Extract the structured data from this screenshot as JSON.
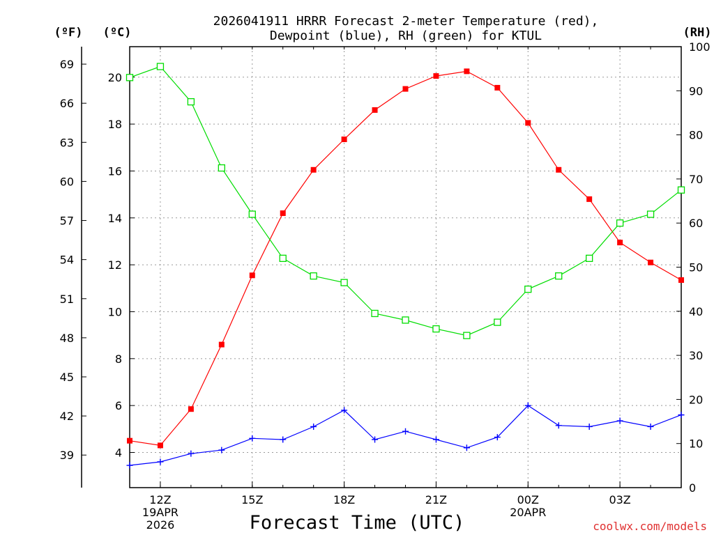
{
  "chart_data": {
    "type": "line",
    "title_line1": "2026041911 HRRR Forecast 2-meter Temperature (red),",
    "title_line2": "Dewpoint (blue), RH (green) for KTUL",
    "unit_f": "(ºF)",
    "unit_c": "(ºC)",
    "unit_rh": "(RH)",
    "xlabel": "Forecast Time (UTC)",
    "credit": "coolwx.com/models",
    "x_hours": [
      11,
      12,
      13,
      14,
      15,
      16,
      17,
      18,
      19,
      20,
      21,
      22,
      23,
      24,
      25,
      26,
      27,
      28,
      29
    ],
    "xlim": [
      11,
      29
    ],
    "x_ticks": [
      {
        "hour": 12,
        "lines": [
          "12Z",
          "19APR",
          "2026"
        ]
      },
      {
        "hour": 15,
        "lines": [
          "15Z"
        ]
      },
      {
        "hour": 18,
        "lines": [
          "18Z"
        ]
      },
      {
        "hour": 21,
        "lines": [
          "21Z"
        ]
      },
      {
        "hour": 24,
        "lines": [
          "00Z",
          "20APR"
        ]
      },
      {
        "hour": 27,
        "lines": [
          "03Z"
        ]
      }
    ],
    "ylim_c": [
      2.5,
      21.3
    ],
    "ylim_rh": [
      0,
      100
    ],
    "y_ticks_c": [
      "4",
      "6",
      "8",
      "10",
      "12",
      "14",
      "16",
      "18",
      "20"
    ],
    "y_ticks_f": [
      "39",
      "42",
      "45",
      "48",
      "51",
      "54",
      "57",
      "60",
      "63",
      "66",
      "69"
    ],
    "y_ticks_rh": [
      "0",
      "10",
      "20",
      "30",
      "40",
      "50",
      "60",
      "70",
      "80",
      "90",
      "100"
    ],
    "series": [
      {
        "name": "Temperature",
        "axis": "c",
        "color": "#ff0000",
        "marker": "filled-square",
        "values": [
          4.5,
          4.3,
          5.85,
          8.6,
          11.55,
          14.2,
          16.05,
          17.35,
          18.6,
          19.5,
          20.05,
          20.25,
          19.55,
          18.05,
          16.05,
          14.8,
          12.95,
          12.1,
          11.35
        ]
      },
      {
        "name": "Dewpoint",
        "axis": "c",
        "color": "#0000ff",
        "marker": "plus",
        "values": [
          3.45,
          3.6,
          3.95,
          4.1,
          4.6,
          4.55,
          5.1,
          5.8,
          4.55,
          4.9,
          4.55,
          4.2,
          4.65,
          6.0,
          5.15,
          5.1,
          5.35,
          5.1,
          5.6
        ]
      },
      {
        "name": "RH",
        "axis": "rh",
        "color": "#00dd00",
        "marker": "open-square",
        "values": [
          93,
          95.5,
          87.5,
          72.5,
          62,
          52,
          48,
          46.5,
          39.5,
          38,
          36,
          34.5,
          37.5,
          45,
          48,
          52,
          60,
          62,
          67.5
        ]
      }
    ]
  }
}
